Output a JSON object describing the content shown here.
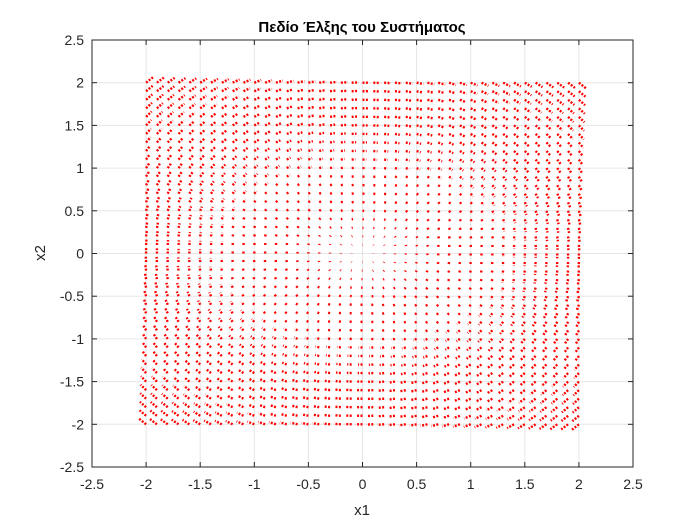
{
  "chart_data": {
    "type": "quiver",
    "title": "Πεδίο Έλξης του Συστήματος",
    "xlabel": "x1",
    "ylabel": "x2",
    "xlim": [
      -2.5,
      2.5
    ],
    "ylim": [
      -2.5,
      2.5
    ],
    "xticks": [
      -2.5,
      -2,
      -1.5,
      -1,
      -0.5,
      0,
      0.5,
      1,
      1.5,
      2,
      2.5
    ],
    "yticks": [
      -2.5,
      -2,
      -1.5,
      -1,
      -0.5,
      0,
      0.5,
      1,
      1.5,
      2,
      2.5
    ],
    "xtick_labels": [
      "-2.5",
      "-2",
      "-1.5",
      "-1",
      "-0.5",
      "0",
      "0.5",
      "1",
      "1.5",
      "2",
      "2.5"
    ],
    "ytick_labels": [
      "-2.5",
      "-2",
      "-1.5",
      "-1",
      "-0.5",
      "0",
      "0.5",
      "1",
      "1.5",
      "2",
      "2.5"
    ],
    "grid": true,
    "field": {
      "x_range": [
        -2,
        2
      ],
      "y_range": [
        -2,
        2
      ],
      "step": 0.1,
      "vector": {
        "u": "x2",
        "v": "-x1"
      }
    },
    "line_style": "dotted",
    "color": "#ff0000"
  }
}
